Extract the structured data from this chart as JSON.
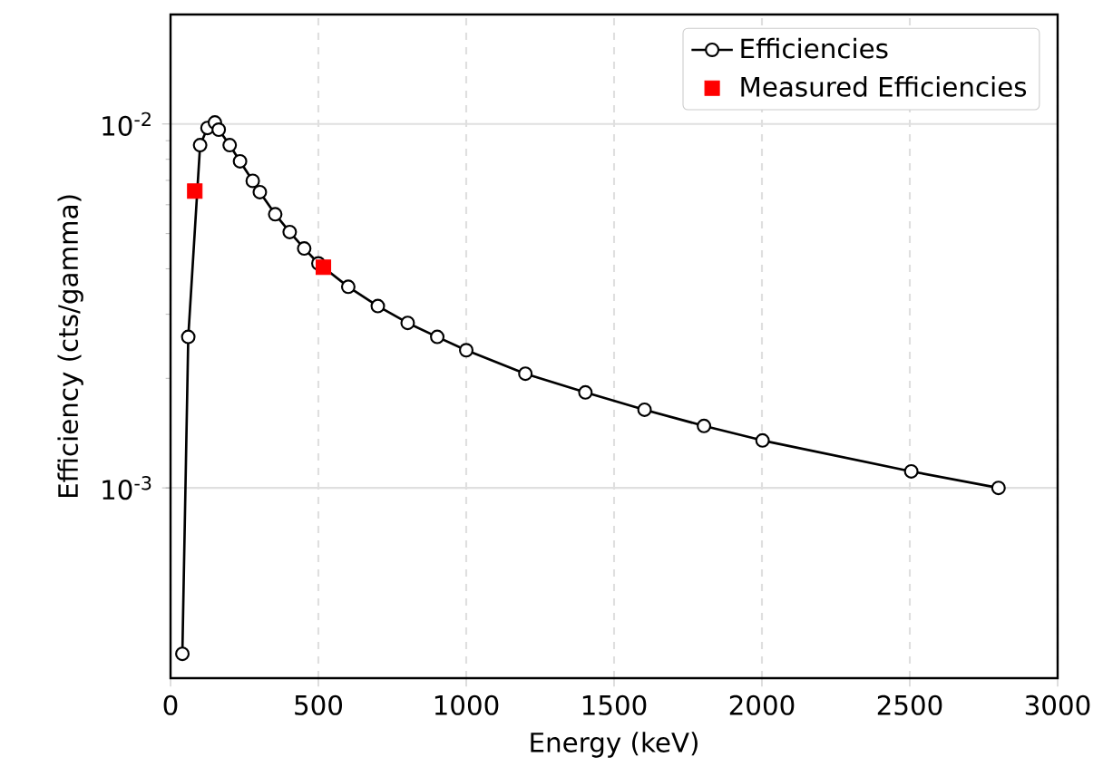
{
  "chart_data": {
    "type": "line",
    "xlabel": "Energy (keV)",
    "ylabel": "Efficiency (cts/gamma)",
    "log": "y",
    "grid": true,
    "legend": "top right",
    "xlim": [
      0,
      3000
    ],
    "xticks": [
      0,
      500,
      1000,
      1500,
      2000,
      2500,
      3000
    ],
    "ylim": [
      0.0003,
      0.02
    ],
    "yticks": [
      {
        "value": 0.001,
        "label": "10$^{-3}$"
      },
      {
        "value": 0.01,
        "label": "10$^{-2}$"
      }
    ],
    "series": [
      {
        "name": "Efficiencies",
        "color": "#000000",
        "marker": "circle",
        "line_style": "solid",
        "x": [
          40,
          60,
          100,
          125,
          150,
          163,
          200,
          235,
          278,
          302,
          354,
          403,
          452,
          500,
          601,
          701,
          802,
          902,
          1000,
          1200,
          1403,
          1603,
          1804,
          2002,
          2505,
          2800
        ],
        "values": [
          0.00035,
          0.0026,
          0.00875,
          0.00975,
          0.0101,
          0.00965,
          0.00875,
          0.0079,
          0.00698,
          0.0065,
          0.00565,
          0.00505,
          0.00455,
          0.00414,
          0.00357,
          0.00316,
          0.00284,
          0.0026,
          0.00239,
          0.00206,
          0.00183,
          0.00164,
          0.00148,
          0.00135,
          0.00111,
          0.001
        ]
      },
      {
        "name": "Measured Efficiencies",
        "type": "scatter",
        "color": "#ff0000",
        "marker": "square",
        "x": [
          82,
          517
        ],
        "values": [
          0.00654,
          0.00404
        ]
      }
    ]
  }
}
